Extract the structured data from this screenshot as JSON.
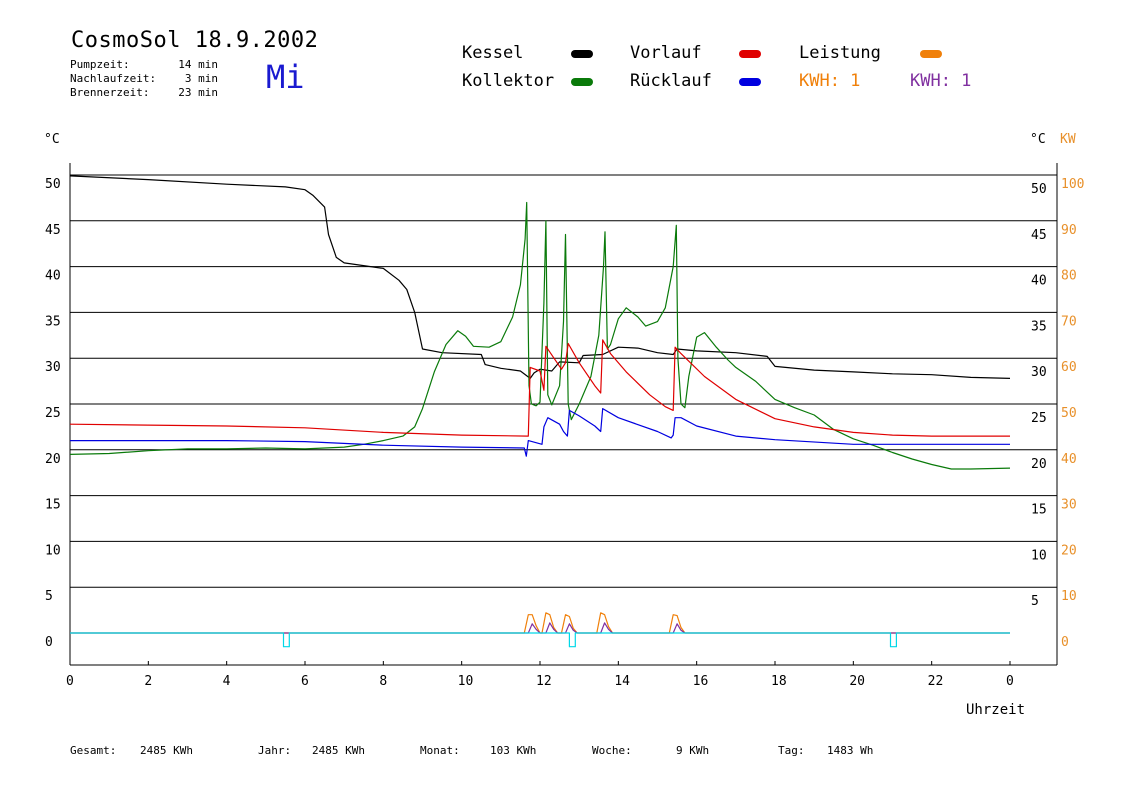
{
  "header": {
    "title": "CosmoSol 18.9.2002",
    "day": "Mi",
    "info": [
      {
        "label": "Pumpzeit:",
        "value": "14 min"
      },
      {
        "label": "Nachlaufzeit:",
        "value": "3 min"
      },
      {
        "label": "Brennerzeit:",
        "value": "23 min"
      }
    ]
  },
  "legend": {
    "kessel": {
      "label": "Kessel",
      "color": "#000000"
    },
    "kollektor": {
      "label": "Kollektor",
      "color": "#0a7a0a"
    },
    "vorlauf": {
      "label": "Vorlauf",
      "color": "#e00000"
    },
    "ruecklauf": {
      "label": "Rücklauf",
      "color": "#0000e0"
    },
    "leistung": {
      "label": "Leistung",
      "color": "#f0800a"
    },
    "kwh1": {
      "label": "KWH: 1",
      "color": "#f0800a"
    },
    "kwh2": {
      "label": "KWH: 1",
      "color": "#8030a0"
    }
  },
  "stats": {
    "gesamt_label": "Gesamt:",
    "gesamt_value": "2485 KWh",
    "jahr_label": "Jahr:",
    "jahr_value": "2485 KWh",
    "monat_label": "Monat:",
    "monat_value": "103 KWh",
    "woche_label": "Woche:",
    "woche_value": "9 KWh",
    "tag_label": "Tag:",
    "tag_value": "1483 Wh"
  },
  "chart_data": {
    "type": "line",
    "xlabel": "Uhrzeit",
    "ylabel_left": "°C",
    "ylabel_right_temp": "°C",
    "ylabel_right_power": "KW",
    "xlim": [
      0,
      24
    ],
    "ylim": [
      0,
      50
    ],
    "xticks": [
      "0",
      "2",
      "4",
      "6",
      "8",
      "10",
      "12",
      "14",
      "16",
      "18",
      "20",
      "22",
      "0"
    ],
    "yticks_left": [
      "0",
      "5",
      "10",
      "15",
      "20",
      "25",
      "30",
      "35",
      "40",
      "45",
      "50"
    ],
    "yticks_right": [
      "",
      "5",
      "10",
      "15",
      "20",
      "25",
      "30",
      "35",
      "40",
      "45",
      "50"
    ],
    "yticks_power": [
      "0",
      "10",
      "20",
      "30",
      "40",
      "50",
      "60",
      "70",
      "80",
      "90",
      "100"
    ],
    "series": [
      {
        "name": "Kessel",
        "color": "#000000",
        "points": [
          [
            0,
            49.9
          ],
          [
            2,
            49.5
          ],
          [
            4,
            49
          ],
          [
            5.5,
            48.7
          ],
          [
            6,
            48.4
          ],
          [
            6.2,
            47.8
          ],
          [
            6.5,
            46.5
          ],
          [
            6.6,
            43.5
          ],
          [
            6.8,
            41
          ],
          [
            7,
            40.4
          ],
          [
            8,
            39.8
          ],
          [
            8.4,
            38.5
          ],
          [
            8.6,
            37.5
          ],
          [
            8.8,
            35
          ],
          [
            9,
            31
          ],
          [
            9.5,
            30.6
          ],
          [
            10.5,
            30.4
          ],
          [
            10.6,
            29.3
          ],
          [
            11,
            28.9
          ],
          [
            11.5,
            28.6
          ],
          [
            11.75,
            27.8
          ],
          [
            11.85,
            28.4
          ],
          [
            12,
            28.8
          ],
          [
            12.3,
            28.6
          ],
          [
            12.5,
            29.6
          ],
          [
            13,
            29.5
          ],
          [
            13.1,
            30.3
          ],
          [
            13.6,
            30.4
          ],
          [
            14,
            31.2
          ],
          [
            14.5,
            31.1
          ],
          [
            15,
            30.6
          ],
          [
            15.4,
            30.4
          ],
          [
            15.5,
            31
          ],
          [
            16,
            30.8
          ],
          [
            17,
            30.6
          ],
          [
            17.8,
            30.2
          ],
          [
            18,
            29.1
          ],
          [
            19,
            28.7
          ],
          [
            20,
            28.5
          ],
          [
            21,
            28.3
          ],
          [
            22,
            28.2
          ],
          [
            23,
            27.9
          ],
          [
            24,
            27.8
          ]
        ]
      },
      {
        "name": "Kollektor",
        "color": "#0a7a0a",
        "points": [
          [
            0,
            19.5
          ],
          [
            1,
            19.6
          ],
          [
            2,
            19.9
          ],
          [
            3,
            20.1
          ],
          [
            4,
            20.1
          ],
          [
            5,
            20.2
          ],
          [
            6,
            20.1
          ],
          [
            7,
            20.3
          ],
          [
            7.5,
            20.6
          ],
          [
            8,
            21
          ],
          [
            8.5,
            21.5
          ],
          [
            8.8,
            22.5
          ],
          [
            9,
            24.5
          ],
          [
            9.3,
            28.5
          ],
          [
            9.6,
            31.5
          ],
          [
            9.9,
            33
          ],
          [
            10.1,
            32.4
          ],
          [
            10.3,
            31.3
          ],
          [
            10.7,
            31.2
          ],
          [
            11,
            31.8
          ],
          [
            11.3,
            34.5
          ],
          [
            11.5,
            38
          ],
          [
            11.62,
            43
          ],
          [
            11.66,
            47
          ],
          [
            11.72,
            27
          ],
          [
            11.78,
            25
          ],
          [
            11.9,
            24.8
          ],
          [
            12,
            25.2
          ],
          [
            12.1,
            36
          ],
          [
            12.15,
            45
          ],
          [
            12.2,
            26
          ],
          [
            12.3,
            24.9
          ],
          [
            12.5,
            27
          ],
          [
            12.6,
            34
          ],
          [
            12.65,
            43.5
          ],
          [
            12.72,
            25
          ],
          [
            12.8,
            23.3
          ],
          [
            13,
            25
          ],
          [
            13.3,
            28
          ],
          [
            13.5,
            32.5
          ],
          [
            13.62,
            40
          ],
          [
            13.66,
            43.8
          ],
          [
            13.72,
            31
          ],
          [
            13.8,
            31.5
          ],
          [
            14,
            34.3
          ],
          [
            14.2,
            35.5
          ],
          [
            14.5,
            34.5
          ],
          [
            14.7,
            33.5
          ],
          [
            15,
            34
          ],
          [
            15.2,
            35.5
          ],
          [
            15.4,
            40
          ],
          [
            15.48,
            44.5
          ],
          [
            15.52,
            30
          ],
          [
            15.6,
            25
          ],
          [
            15.7,
            24.6
          ],
          [
            15.8,
            28
          ],
          [
            16,
            32.3
          ],
          [
            16.2,
            32.8
          ],
          [
            16.5,
            31.2
          ],
          [
            16.8,
            29.8
          ],
          [
            17,
            29
          ],
          [
            17.5,
            27.5
          ],
          [
            18,
            25.5
          ],
          [
            18.5,
            24.6
          ],
          [
            19,
            23.8
          ],
          [
            19.5,
            22.2
          ],
          [
            20,
            21.2
          ],
          [
            20.5,
            20.5
          ],
          [
            21,
            19.7
          ],
          [
            21.5,
            19
          ],
          [
            22,
            18.4
          ],
          [
            22.5,
            17.9
          ],
          [
            23,
            17.9
          ],
          [
            24,
            18
          ]
        ]
      },
      {
        "name": "Vorlauf",
        "color": "#e00000",
        "points": [
          [
            0,
            22.8
          ],
          [
            2,
            22.7
          ],
          [
            4,
            22.6
          ],
          [
            6,
            22.4
          ],
          [
            8,
            21.9
          ],
          [
            10,
            21.6
          ],
          [
            11.7,
            21.5
          ],
          [
            11.75,
            29
          ],
          [
            12,
            28.6
          ],
          [
            12.1,
            26.5
          ],
          [
            12.15,
            31.3
          ],
          [
            12.55,
            28.8
          ],
          [
            12.65,
            29.5
          ],
          [
            12.72,
            31.6
          ],
          [
            13,
            29.5
          ],
          [
            13.4,
            27
          ],
          [
            13.55,
            26.2
          ],
          [
            13.6,
            32
          ],
          [
            13.8,
            30.5
          ],
          [
            14.2,
            28.5
          ],
          [
            14.8,
            26
          ],
          [
            15.2,
            24.7
          ],
          [
            15.4,
            24.3
          ],
          [
            15.45,
            31.2
          ],
          [
            15.6,
            30.5
          ],
          [
            16.2,
            28
          ],
          [
            17,
            25.5
          ],
          [
            18,
            23.4
          ],
          [
            19,
            22.5
          ],
          [
            20,
            21.9
          ],
          [
            21,
            21.6
          ],
          [
            22,
            21.5
          ],
          [
            24,
            21.5
          ]
        ]
      },
      {
        "name": "Rücklauf",
        "color": "#0000e0",
        "points": [
          [
            0,
            21
          ],
          [
            2,
            21
          ],
          [
            4,
            21
          ],
          [
            6,
            20.9
          ],
          [
            8,
            20.5
          ],
          [
            10,
            20.3
          ],
          [
            11.6,
            20.2
          ],
          [
            11.65,
            19.3
          ],
          [
            11.7,
            21
          ],
          [
            12.05,
            20.6
          ],
          [
            12.1,
            22.5
          ],
          [
            12.2,
            23.5
          ],
          [
            12.5,
            22.8
          ],
          [
            12.6,
            22
          ],
          [
            12.7,
            21.5
          ],
          [
            12.75,
            24.3
          ],
          [
            13,
            23.7
          ],
          [
            13.4,
            22.6
          ],
          [
            13.55,
            22
          ],
          [
            13.6,
            24.5
          ],
          [
            14,
            23.5
          ],
          [
            15,
            22
          ],
          [
            15.35,
            21.3
          ],
          [
            15.4,
            21.6
          ],
          [
            15.45,
            23.5
          ],
          [
            15.6,
            23.5
          ],
          [
            16,
            22.6
          ],
          [
            17,
            21.5
          ],
          [
            18,
            21.1
          ],
          [
            20,
            20.6
          ],
          [
            22,
            20.6
          ],
          [
            24,
            20.6
          ]
        ]
      },
      {
        "name": "Leistung",
        "color": "#f0800a",
        "points": [
          [
            0,
            0
          ],
          [
            11.6,
            0
          ],
          [
            11.7,
            2
          ],
          [
            11.8,
            2
          ],
          [
            11.9,
            0.8
          ],
          [
            12,
            0
          ],
          [
            12.05,
            0
          ],
          [
            12.15,
            2.2
          ],
          [
            12.25,
            2
          ],
          [
            12.35,
            0.6
          ],
          [
            12.45,
            0
          ],
          [
            12.55,
            0
          ],
          [
            12.65,
            2
          ],
          [
            12.75,
            1.8
          ],
          [
            12.85,
            0.5
          ],
          [
            12.95,
            0
          ],
          [
            13.45,
            0
          ],
          [
            13.55,
            2.2
          ],
          [
            13.65,
            2
          ],
          [
            13.75,
            0.7
          ],
          [
            13.85,
            0
          ],
          [
            15.3,
            0
          ],
          [
            15.4,
            2
          ],
          [
            15.5,
            1.9
          ],
          [
            15.6,
            0.6
          ],
          [
            15.7,
            0
          ],
          [
            24,
            0
          ]
        ]
      },
      {
        "name": "KWH",
        "color": "#8030a0",
        "points": [
          [
            0,
            0
          ],
          [
            11.7,
            0
          ],
          [
            11.8,
            1
          ],
          [
            11.9,
            0.4
          ],
          [
            12,
            0
          ],
          [
            12.15,
            0
          ],
          [
            12.25,
            1.1
          ],
          [
            12.35,
            0.4
          ],
          [
            12.45,
            0
          ],
          [
            12.65,
            0
          ],
          [
            12.75,
            1
          ],
          [
            12.85,
            0.3
          ],
          [
            12.95,
            0
          ],
          [
            13.55,
            0
          ],
          [
            13.65,
            1.1
          ],
          [
            13.75,
            0.4
          ],
          [
            13.85,
            0
          ],
          [
            15.4,
            0
          ],
          [
            15.5,
            1
          ],
          [
            15.6,
            0.3
          ],
          [
            15.7,
            0
          ],
          [
            24,
            0
          ]
        ]
      },
      {
        "name": "Pumpe",
        "color": "#00d8e8",
        "points": [
          [
            0,
            0
          ],
          [
            5.45,
            0
          ],
          [
            5.45,
            -1.5
          ],
          [
            5.6,
            -1.5
          ],
          [
            5.6,
            0
          ],
          [
            12.75,
            0
          ],
          [
            12.75,
            -1.5
          ],
          [
            12.9,
            -1.5
          ],
          [
            12.9,
            0
          ],
          [
            20.95,
            0
          ],
          [
            20.95,
            -1.5
          ],
          [
            21.1,
            -1.5
          ],
          [
            21.1,
            0
          ],
          [
            24,
            0
          ]
        ]
      }
    ]
  }
}
